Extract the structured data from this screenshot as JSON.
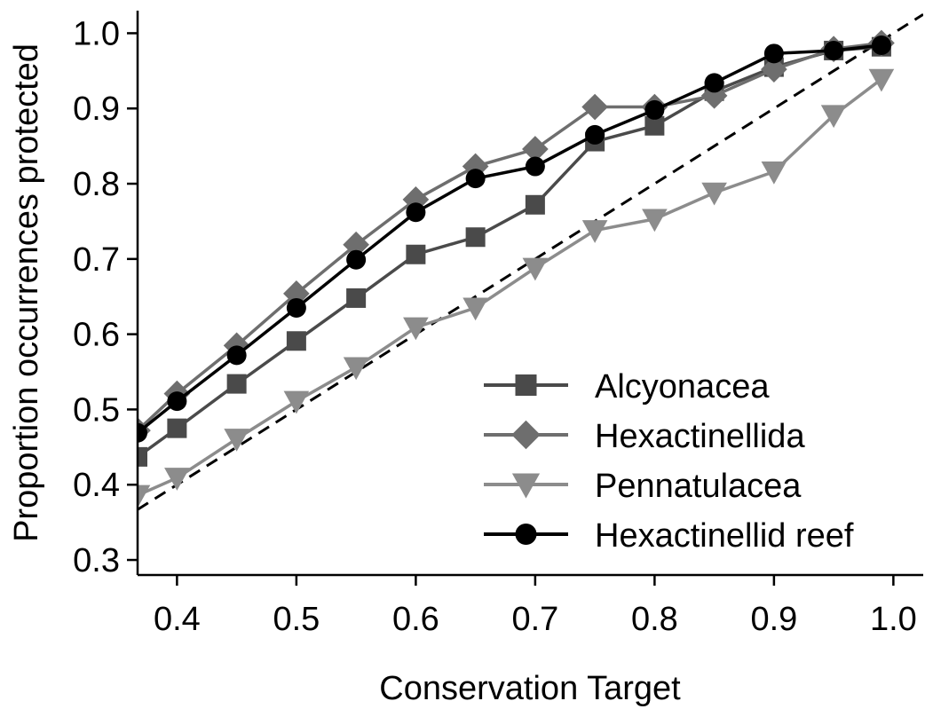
{
  "chart_data": {
    "type": "line",
    "title": "",
    "xlabel": "Conservation Target",
    "ylabel": "Proportion occurrences protected",
    "xlim": [
      0.367,
      1.025
    ],
    "ylim": [
      0.28,
      1.03
    ],
    "xticks": [
      0.4,
      0.5,
      0.6,
      0.7,
      0.8,
      0.9,
      1.0
    ],
    "xtick_labels": [
      "0.4",
      "0.5",
      "0.6",
      "0.7",
      "0.8",
      "0.9",
      "1.0"
    ],
    "yticks": [
      0.3,
      0.4,
      0.5,
      0.6,
      0.7,
      0.8,
      0.9,
      1.0
    ],
    "ytick_labels": [
      "0.3",
      "0.4",
      "0.5",
      "0.6",
      "0.7",
      "0.8",
      "0.9",
      "1.0"
    ],
    "grid": false,
    "legend_position": "bottom-right",
    "reference_line": {
      "style": "dashed",
      "color": "#000000",
      "points": [
        [
          0.367,
          0.367
        ],
        [
          1.025,
          1.025
        ]
      ]
    },
    "series": [
      {
        "name": "Alcyonacea",
        "marker": "square",
        "color": "#4a4a4a",
        "x": [
          0.367,
          0.4,
          0.45,
          0.5,
          0.55,
          0.6,
          0.65,
          0.7,
          0.75,
          0.8,
          0.85,
          0.9,
          0.95,
          0.99
        ],
        "y": [
          0.437,
          0.475,
          0.534,
          0.591,
          0.648,
          0.706,
          0.729,
          0.772,
          0.856,
          0.877,
          0.923,
          0.955,
          0.977,
          0.982
        ]
      },
      {
        "name": "Hexactinellida",
        "marker": "diamond",
        "color": "#6e6e6e",
        "x": [
          0.367,
          0.4,
          0.45,
          0.5,
          0.55,
          0.6,
          0.65,
          0.7,
          0.75,
          0.8,
          0.85,
          0.9,
          0.95,
          0.99
        ],
        "y": [
          0.472,
          0.521,
          0.585,
          0.654,
          0.719,
          0.779,
          0.823,
          0.846,
          0.902,
          0.902,
          0.917,
          0.952,
          0.979,
          0.987
        ]
      },
      {
        "name": "Pennatulacea",
        "marker": "triangle-down",
        "color": "#8c8c8c",
        "x": [
          0.367,
          0.4,
          0.45,
          0.5,
          0.55,
          0.6,
          0.65,
          0.7,
          0.75,
          0.8,
          0.85,
          0.9,
          0.95,
          0.99
        ],
        "y": [
          0.386,
          0.409,
          0.461,
          0.511,
          0.556,
          0.609,
          0.635,
          0.688,
          0.738,
          0.753,
          0.788,
          0.816,
          0.891,
          0.939
        ]
      },
      {
        "name": "Hexactinellid reef",
        "marker": "circle",
        "color": "#000000",
        "x": [
          0.367,
          0.4,
          0.45,
          0.5,
          0.55,
          0.6,
          0.65,
          0.7,
          0.75,
          0.8,
          0.85,
          0.9,
          0.95,
          0.99
        ],
        "y": [
          0.469,
          0.511,
          0.572,
          0.635,
          0.699,
          0.762,
          0.807,
          0.823,
          0.865,
          0.898,
          0.934,
          0.973,
          0.977,
          0.984
        ]
      }
    ]
  }
}
